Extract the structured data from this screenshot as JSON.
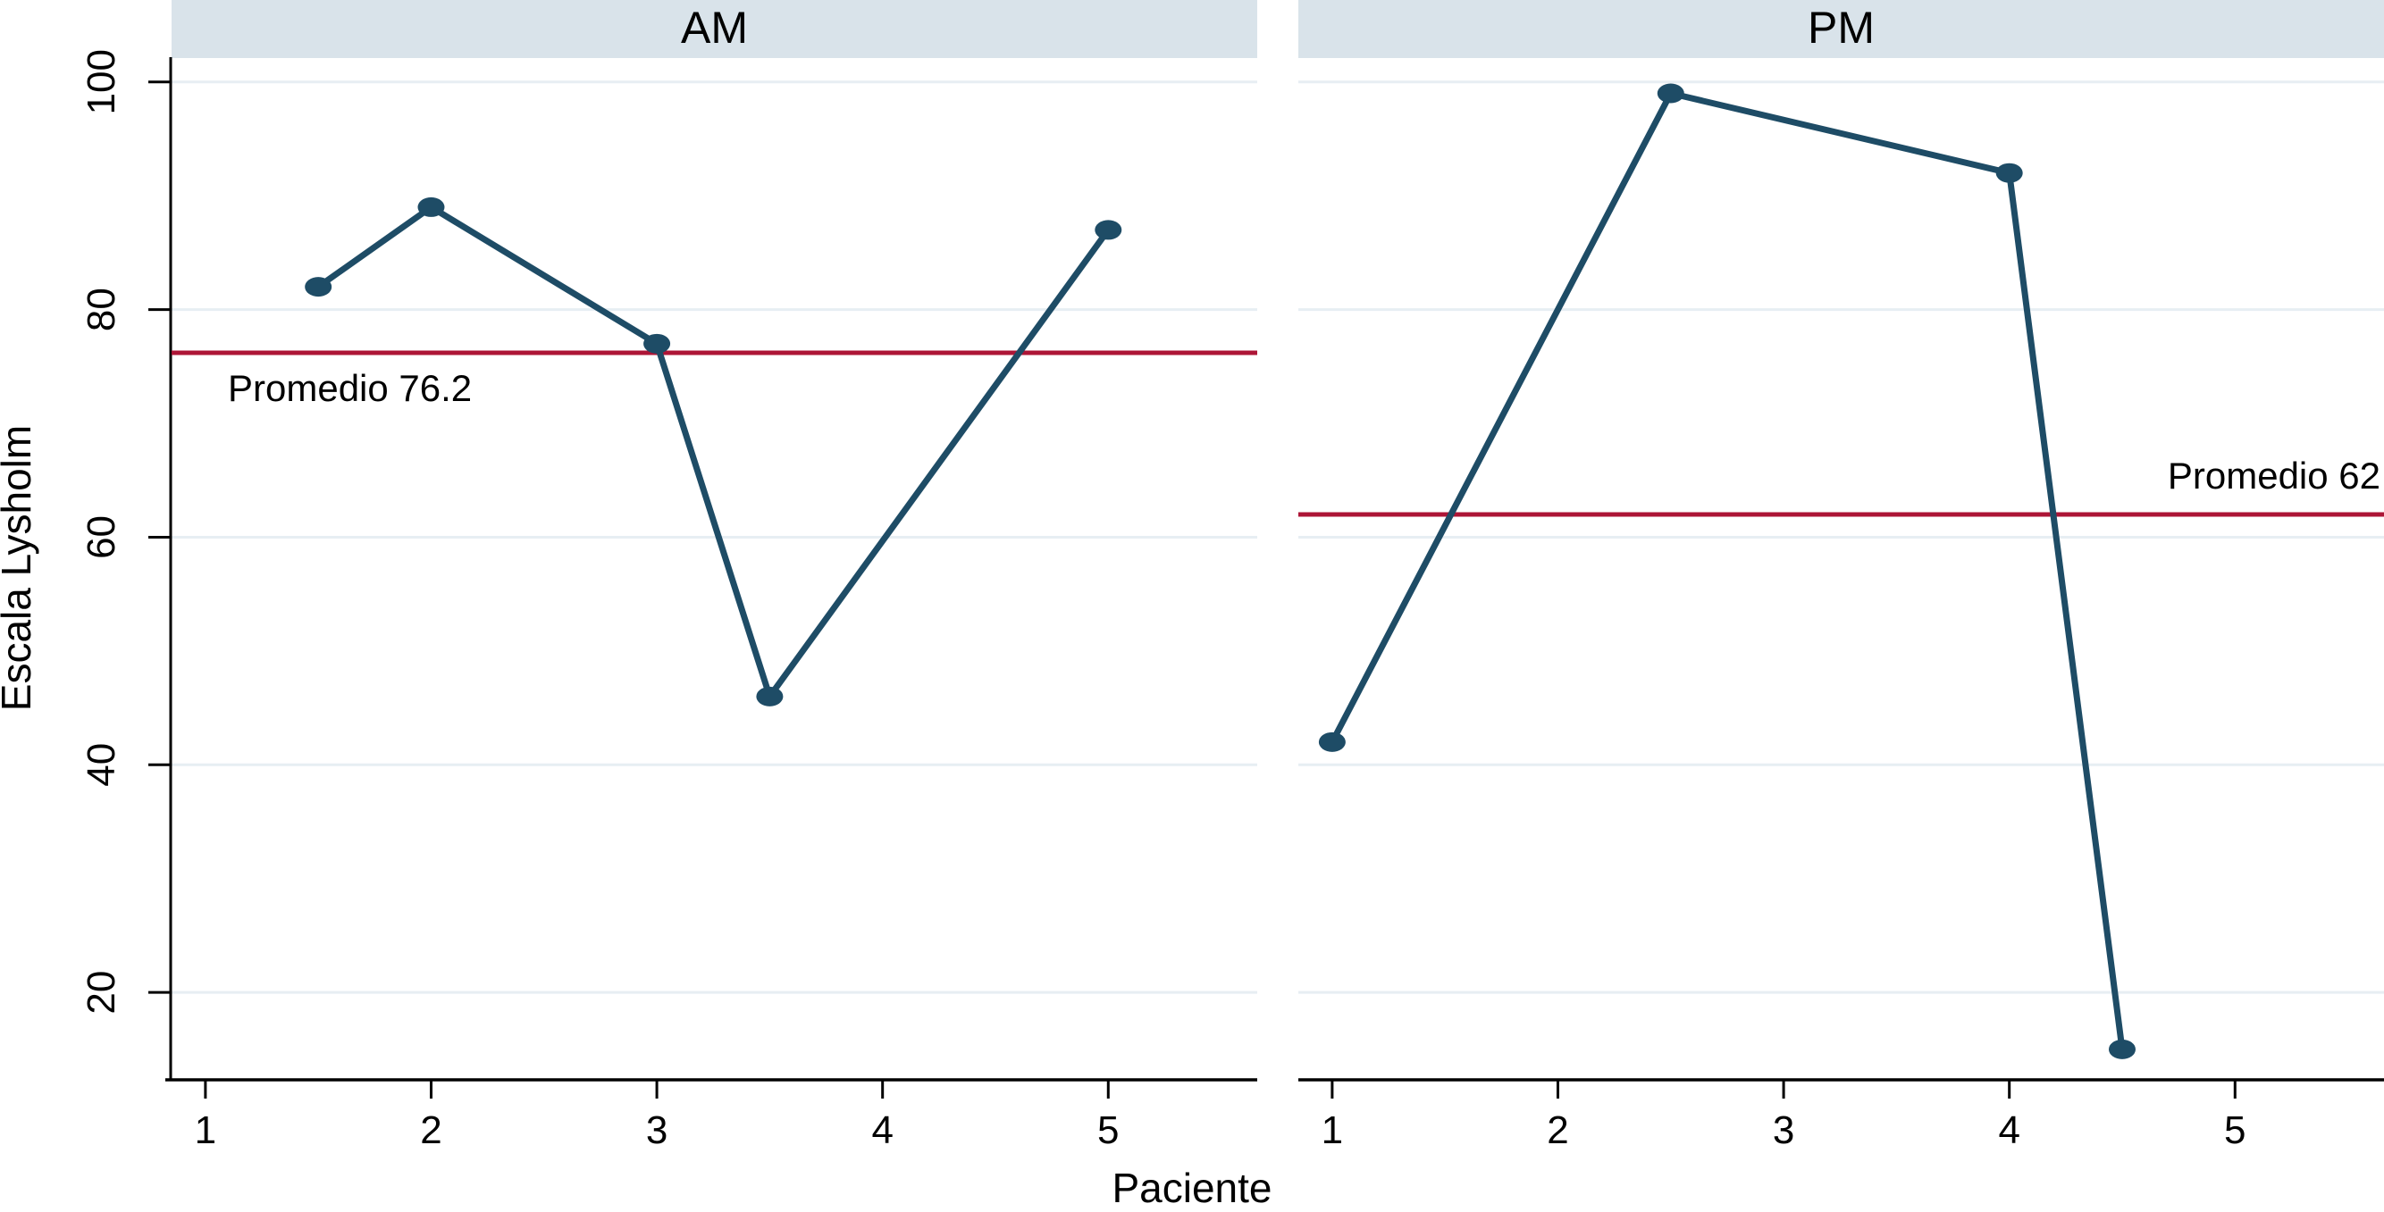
{
  "figure": {
    "ylabel": "Escala Lysholm",
    "xlabel": "Paciente",
    "colors": {
      "series": "#1e4c66",
      "reference": "#ad1536",
      "panel_header_bg": "#d9e3ea",
      "gridline": "#e7eef3",
      "axis": "#000000",
      "plot_bg": "#ffffff",
      "text": "#000000"
    }
  },
  "chart_data": [
    {
      "type": "line",
      "panel_title": "AM",
      "x": [
        1.5,
        2,
        3,
        3.5,
        5
      ],
      "y": [
        82,
        89,
        77,
        46,
        87
      ],
      "series_name": "Escala Lysholm",
      "reference_line": {
        "value": 76.2,
        "label": "Promedio 76.2",
        "label_position": "below-left"
      },
      "xticks": [
        1,
        2,
        3,
        4,
        5
      ],
      "yticks": [
        20,
        40,
        60,
        80,
        100
      ],
      "xlim": [
        0.85,
        5.66
      ],
      "ylim": [
        12.4,
        102.1
      ],
      "grid": true,
      "legend": "none",
      "xlabel": "Paciente",
      "ylabel": "Escala Lysholm"
    },
    {
      "type": "line",
      "panel_title": "PM",
      "x": [
        1,
        2.5,
        4,
        4.5
      ],
      "y": [
        42,
        99,
        92,
        15
      ],
      "series_name": "Escala Lysholm",
      "reference_line": {
        "value": 62,
        "label": "Promedio 62",
        "label_position": "above-right"
      },
      "xticks": [
        1,
        2,
        3,
        4,
        5
      ],
      "yticks": [
        20,
        40,
        60,
        80,
        100
      ],
      "xlim": [
        0.85,
        5.66
      ],
      "ylim": [
        12.4,
        102.1
      ],
      "grid": true,
      "legend": "none",
      "xlabel": "Paciente",
      "ylabel": "Escala Lysholm"
    }
  ]
}
